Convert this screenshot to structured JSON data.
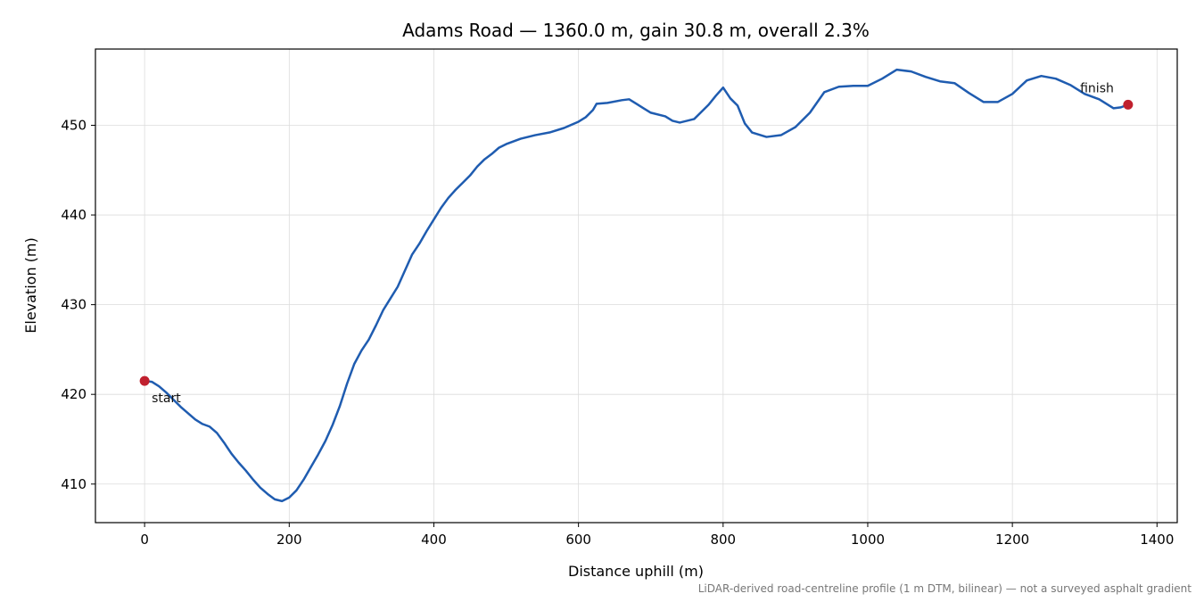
{
  "chart_data": {
    "type": "line",
    "title": "Adams Road — 1360.0 m, gain 30.8 m, overall 2.3%",
    "x_label": "Distance uphill (m)",
    "y_label": "Elevation (m)",
    "note": "LiDAR-derived road-centreline profile (1 m DTM, bilinear) — not a surveyed asphalt gradient",
    "xlim": [
      -68,
      1428
    ],
    "ylim": [
      405.7,
      458.5
    ],
    "xticks": [
      0,
      200,
      400,
      600,
      800,
      1000,
      1200,
      1400
    ],
    "yticks": [
      410,
      420,
      430,
      440,
      450
    ],
    "grid": true,
    "series": [
      {
        "color": "#1f5cb0",
        "x": [
          0,
          10,
          20,
          30,
          40,
          50,
          60,
          70,
          80,
          90,
          100,
          110,
          120,
          130,
          140,
          150,
          160,
          170,
          180,
          190,
          200,
          210,
          220,
          230,
          240,
          250,
          260,
          270,
          280,
          290,
          300,
          310,
          320,
          330,
          340,
          350,
          360,
          370,
          380,
          390,
          400,
          410,
          420,
          430,
          440,
          450,
          460,
          470,
          480,
          490,
          500,
          520,
          540,
          560,
          580,
          600,
          610,
          620,
          625,
          640,
          660,
          670,
          680,
          690,
          700,
          720,
          730,
          740,
          760,
          780,
          790,
          800,
          810,
          820,
          830,
          840,
          860,
          880,
          900,
          920,
          940,
          960,
          980,
          1000,
          1020,
          1040,
          1060,
          1080,
          1100,
          1120,
          1140,
          1160,
          1180,
          1200,
          1220,
          1240,
          1260,
          1280,
          1300,
          1320,
          1340,
          1350,
          1360
        ],
        "values": [
          421.5,
          421.4,
          420.9,
          420.2,
          419.4,
          418.6,
          417.9,
          417.2,
          416.7,
          416.4,
          415.7,
          414.6,
          413.4,
          412.4,
          411.5,
          410.5,
          409.6,
          408.9,
          408.3,
          408.1,
          408.5,
          409.3,
          410.5,
          411.9,
          413.3,
          414.8,
          416.6,
          418.7,
          421.2,
          423.4,
          424.9,
          426.1,
          427.7,
          429.4,
          430.7,
          432.0,
          433.8,
          435.6,
          436.8,
          438.2,
          439.5,
          440.8,
          441.9,
          442.8,
          443.6,
          444.4,
          445.4,
          446.2,
          446.8,
          447.5,
          447.9,
          448.5,
          448.9,
          449.2,
          449.7,
          450.4,
          450.9,
          451.7,
          452.4,
          452.5,
          452.8,
          452.9,
          452.4,
          451.9,
          451.4,
          451.0,
          450.5,
          450.3,
          450.7,
          452.3,
          453.3,
          454.2,
          453.0,
          452.2,
          450.2,
          449.2,
          448.7,
          448.9,
          449.8,
          451.4,
          453.7,
          454.3,
          454.4,
          454.4,
          455.2,
          456.2,
          456.0,
          455.4,
          454.9,
          454.7,
          453.6,
          452.6,
          452.6,
          453.5,
          455.0,
          455.5,
          455.2,
          454.5,
          453.5,
          452.9,
          451.9,
          452.0,
          452.3
        ]
      }
    ],
    "points": [
      {
        "label": "start",
        "x": 0,
        "y": 421.5,
        "color": "#c0202e"
      },
      {
        "label": "finish",
        "x": 1360,
        "y": 452.3,
        "color": "#c0202e"
      }
    ]
  }
}
